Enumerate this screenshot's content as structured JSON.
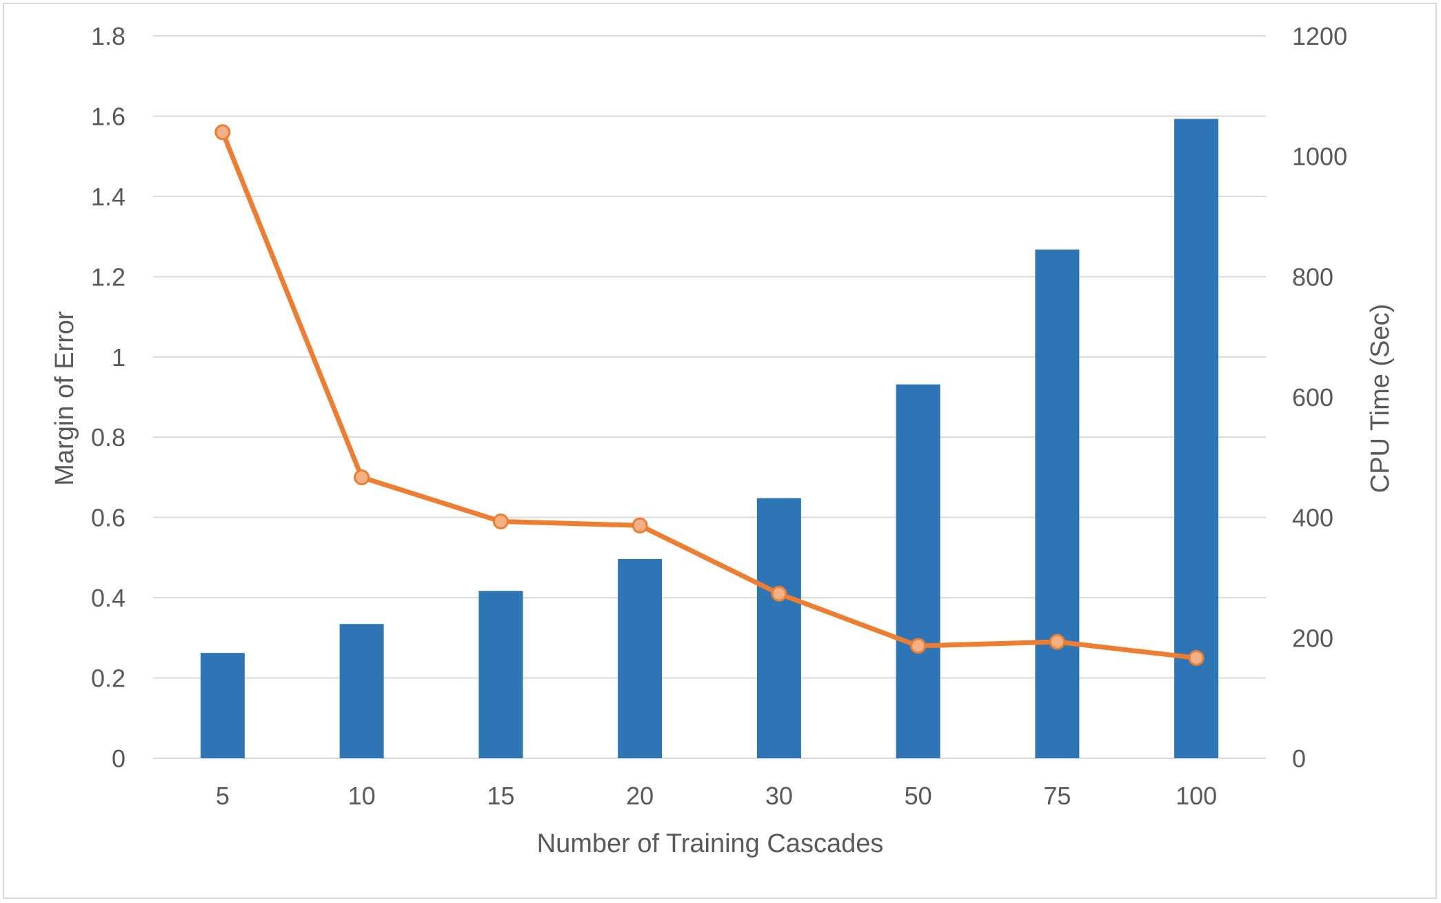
{
  "chart_data": {
    "type": "bar",
    "categories": [
      "5",
      "10",
      "15",
      "20",
      "30",
      "50",
      "75",
      "100"
    ],
    "series": [
      {
        "type": "bar",
        "axis": "right",
        "color": "#2e75b6",
        "values": [
          175,
          223,
          278,
          331,
          432,
          621,
          845,
          1062
        ]
      },
      {
        "type": "line",
        "axis": "left",
        "color": "#ed7d31",
        "marker_fill": "#f4b183",
        "values": [
          1.56,
          0.7,
          0.59,
          0.58,
          0.41,
          0.28,
          0.29,
          0.25
        ]
      }
    ],
    "title": "",
    "xlabel": "Number of Training Cascades",
    "ylabel": "Margin of Error",
    "y2label": "CPU Time (Sec)",
    "ylim": [
      0,
      1.8
    ],
    "y2lim": [
      0,
      1200
    ],
    "yticks": [
      "0",
      "0.2",
      "0.4",
      "0.6",
      "0.8",
      "1",
      "1.2",
      "1.4",
      "1.6",
      "1.8"
    ],
    "y2ticks": [
      "0",
      "200",
      "400",
      "600",
      "800",
      "1000",
      "1200"
    ],
    "grid": true,
    "gridline_color": "#d9d9d9"
  }
}
